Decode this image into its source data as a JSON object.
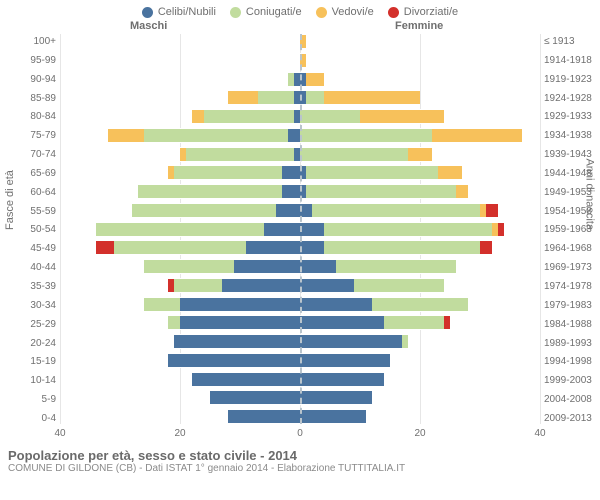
{
  "legend": [
    {
      "label": "Celibi/Nubili",
      "color": "#4a739f"
    },
    {
      "label": "Coniugati/e",
      "color": "#c1dc9e"
    },
    {
      "label": "Vedovi/e",
      "color": "#f7c15b"
    },
    {
      "label": "Divorziati/e",
      "color": "#d3302b"
    }
  ],
  "header": {
    "male": "Maschi",
    "female": "Femmine"
  },
  "axis": {
    "left_title": "Fasce di età",
    "right_title": "Anni di nascita",
    "xmax": 40,
    "xticks": [
      40,
      20,
      0,
      20,
      40
    ]
  },
  "footer": {
    "title": "Popolazione per età, sesso e stato civile - 2014",
    "subtitle": "COMUNE DI GILDONE (CB) - Dati ISTAT 1° gennaio 2014 - Elaborazione TUTTITALIA.IT"
  },
  "categories": [
    {
      "age": "100+",
      "birth": "≤ 1913"
    },
    {
      "age": "95-99",
      "birth": "1914-1918"
    },
    {
      "age": "90-94",
      "birth": "1919-1923"
    },
    {
      "age": "85-89",
      "birth": "1924-1928"
    },
    {
      "age": "80-84",
      "birth": "1929-1933"
    },
    {
      "age": "75-79",
      "birth": "1934-1938"
    },
    {
      "age": "70-74",
      "birth": "1939-1943"
    },
    {
      "age": "65-69",
      "birth": "1944-1948"
    },
    {
      "age": "60-64",
      "birth": "1949-1953"
    },
    {
      "age": "55-59",
      "birth": "1954-1958"
    },
    {
      "age": "50-54",
      "birth": "1959-1963"
    },
    {
      "age": "45-49",
      "birth": "1964-1968"
    },
    {
      "age": "40-44",
      "birth": "1969-1973"
    },
    {
      "age": "35-39",
      "birth": "1974-1978"
    },
    {
      "age": "30-34",
      "birth": "1979-1983"
    },
    {
      "age": "25-29",
      "birth": "1984-1988"
    },
    {
      "age": "20-24",
      "birth": "1989-1993"
    },
    {
      "age": "15-19",
      "birth": "1994-1998"
    },
    {
      "age": "10-14",
      "birth": "1999-2003"
    },
    {
      "age": "5-9",
      "birth": "2004-2008"
    },
    {
      "age": "0-4",
      "birth": "2009-2013"
    }
  ],
  "data": {
    "male": [
      {
        "cel": 0,
        "con": 0,
        "ved": 0,
        "div": 0
      },
      {
        "cel": 0,
        "con": 0,
        "ved": 0,
        "div": 0
      },
      {
        "cel": 1,
        "con": 1,
        "ved": 0,
        "div": 0
      },
      {
        "cel": 1,
        "con": 6,
        "ved": 5,
        "div": 0
      },
      {
        "cel": 1,
        "con": 15,
        "ved": 2,
        "div": 0
      },
      {
        "cel": 2,
        "con": 24,
        "ved": 6,
        "div": 0
      },
      {
        "cel": 1,
        "con": 18,
        "ved": 1,
        "div": 0
      },
      {
        "cel": 3,
        "con": 18,
        "ved": 1,
        "div": 0
      },
      {
        "cel": 3,
        "con": 24,
        "ved": 0,
        "div": 0
      },
      {
        "cel": 4,
        "con": 24,
        "ved": 0,
        "div": 0
      },
      {
        "cel": 6,
        "con": 28,
        "ved": 0,
        "div": 0
      },
      {
        "cel": 9,
        "con": 22,
        "ved": 0,
        "div": 3
      },
      {
        "cel": 11,
        "con": 15,
        "ved": 0,
        "div": 0
      },
      {
        "cel": 13,
        "con": 8,
        "ved": 0,
        "div": 1
      },
      {
        "cel": 20,
        "con": 6,
        "ved": 0,
        "div": 0
      },
      {
        "cel": 20,
        "con": 2,
        "ved": 0,
        "div": 0
      },
      {
        "cel": 21,
        "con": 0,
        "ved": 0,
        "div": 0
      },
      {
        "cel": 22,
        "con": 0,
        "ved": 0,
        "div": 0
      },
      {
        "cel": 18,
        "con": 0,
        "ved": 0,
        "div": 0
      },
      {
        "cel": 15,
        "con": 0,
        "ved": 0,
        "div": 0
      },
      {
        "cel": 12,
        "con": 0,
        "ved": 0,
        "div": 0
      }
    ],
    "female": [
      {
        "cel": 0,
        "con": 0,
        "ved": 1,
        "div": 0
      },
      {
        "cel": 0,
        "con": 0,
        "ved": 1,
        "div": 0
      },
      {
        "cel": 1,
        "con": 0,
        "ved": 3,
        "div": 0
      },
      {
        "cel": 1,
        "con": 3,
        "ved": 16,
        "div": 0
      },
      {
        "cel": 0,
        "con": 10,
        "ved": 14,
        "div": 0
      },
      {
        "cel": 0,
        "con": 22,
        "ved": 15,
        "div": 0
      },
      {
        "cel": 0,
        "con": 18,
        "ved": 4,
        "div": 0
      },
      {
        "cel": 1,
        "con": 22,
        "ved": 4,
        "div": 0
      },
      {
        "cel": 1,
        "con": 25,
        "ved": 2,
        "div": 0
      },
      {
        "cel": 2,
        "con": 28,
        "ved": 1,
        "div": 2
      },
      {
        "cel": 4,
        "con": 28,
        "ved": 1,
        "div": 1
      },
      {
        "cel": 4,
        "con": 26,
        "ved": 0,
        "div": 2
      },
      {
        "cel": 6,
        "con": 20,
        "ved": 0,
        "div": 0
      },
      {
        "cel": 9,
        "con": 15,
        "ved": 0,
        "div": 0
      },
      {
        "cel": 12,
        "con": 16,
        "ved": 0,
        "div": 0
      },
      {
        "cel": 14,
        "con": 10,
        "ved": 0,
        "div": 1
      },
      {
        "cel": 17,
        "con": 1,
        "ved": 0,
        "div": 0
      },
      {
        "cel": 15,
        "con": 0,
        "ved": 0,
        "div": 0
      },
      {
        "cel": 14,
        "con": 0,
        "ved": 0,
        "div": 0
      },
      {
        "cel": 12,
        "con": 0,
        "ved": 0,
        "div": 0
      },
      {
        "cel": 11,
        "con": 0,
        "ved": 0,
        "div": 0
      }
    ]
  }
}
